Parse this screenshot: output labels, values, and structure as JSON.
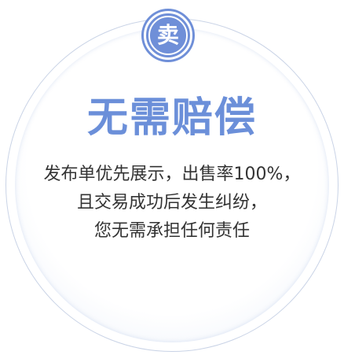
{
  "badge": {
    "label": "卖"
  },
  "title": "无需赔偿",
  "description": {
    "line1": "发布单优先展示，出售率100%，",
    "line2": "且交易成功后发生纠纷，",
    "line3": "您无需承担任何责任"
  },
  "colors": {
    "accent": "#6f8fd8",
    "title": "#6b8fd9",
    "text": "#333333",
    "ring": "#c9d3e6"
  }
}
